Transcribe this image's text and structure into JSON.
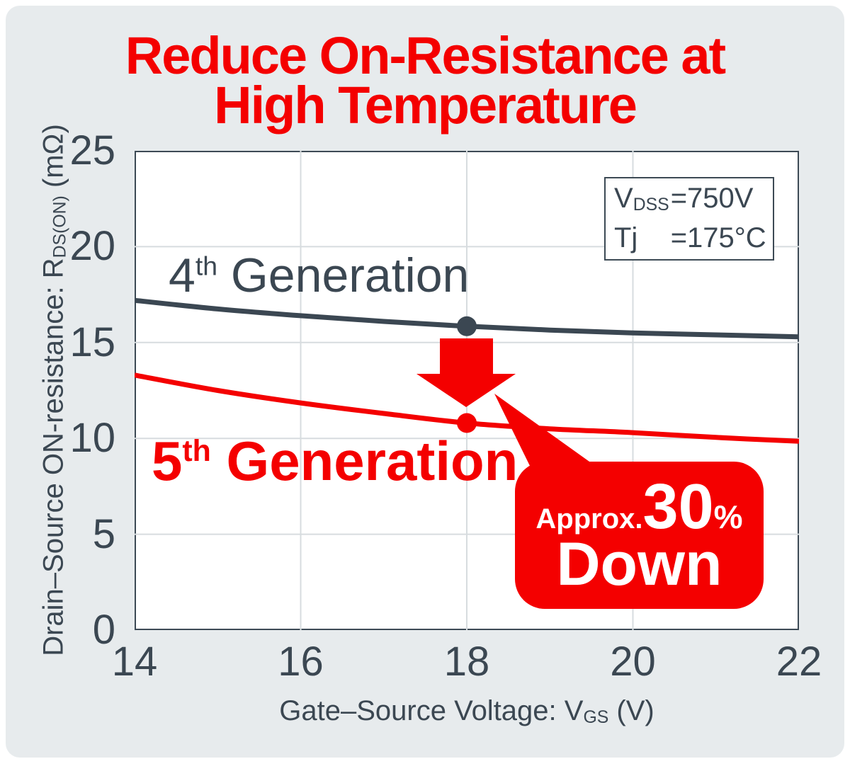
{
  "title": {
    "line1": "Reduce On-Resistance at",
    "line2": "High Temperature"
  },
  "conditions": {
    "line1_symbol": "V",
    "line1_sub": "DSS",
    "line1_value": "=750V",
    "line2_symbol": "Tj",
    "line2_value": "=175°C"
  },
  "series_labels": {
    "gen4": {
      "number": "4",
      "ordinal": "th",
      "text": " Generation"
    },
    "gen5": {
      "number": "5",
      "ordinal": "th",
      "text": " Generation"
    }
  },
  "callout": {
    "prefix": "Approx.",
    "value": "30",
    "unit": "%",
    "suffix": "Down"
  },
  "axes": {
    "x": {
      "label_main": "Gate–Source Voltage: V",
      "label_sub": "GS",
      "label_unit": " (V)",
      "ticks": [
        "14",
        "16",
        "18",
        "20",
        "22"
      ]
    },
    "y": {
      "label_main": "Drain–Source ON-resistance: R",
      "label_sub": "DS(ON)",
      "label_unit": " (mΩ)",
      "ticks": [
        "25",
        "20",
        "15",
        "10",
        "5",
        "0"
      ]
    }
  },
  "colors": {
    "accent_red": "#f40000",
    "slate": "#3b4752",
    "panel_bg": "#e7ebed",
    "grid": "#d7dcdf",
    "plot_border": "#3d4a55",
    "plot_bg": "#ffffff"
  },
  "chart_data": {
    "type": "line",
    "title": "Reduce On-Resistance at High Temperature",
    "x": [
      14,
      15,
      16,
      17,
      18,
      19,
      20,
      21,
      22
    ],
    "series": [
      {
        "name": "4th Generation",
        "color": "#3b4752",
        "values": [
          17.2,
          16.75,
          16.4,
          16.1,
          15.85,
          15.65,
          15.5,
          15.4,
          15.3
        ],
        "marker": {
          "x": 18,
          "y": 15.85
        }
      },
      {
        "name": "5th Generation",
        "color": "#f40000",
        "values": [
          13.3,
          12.5,
          11.85,
          11.3,
          10.8,
          10.5,
          10.3,
          10.05,
          9.85
        ],
        "values_note": "approximate, read from pixels",
        "marker": {
          "x": 18,
          "y": 10.8
        }
      }
    ],
    "xlabel": "Gate–Source Voltage: VGS (V)",
    "ylabel": "Drain–Source ON-resistance: RDS(ON) (mΩ)",
    "xlim": [
      14,
      22
    ],
    "ylim": [
      0,
      25
    ],
    "x_gridlines": [
      16,
      18,
      20
    ],
    "y_gridlines": [
      5,
      10,
      15,
      20
    ],
    "grid": true,
    "legend_position": "none",
    "annotation": "Approx. 30% Down (at VGS=18V)",
    "conditions": [
      "VDSS=750V",
      "Tj =175°C"
    ]
  }
}
